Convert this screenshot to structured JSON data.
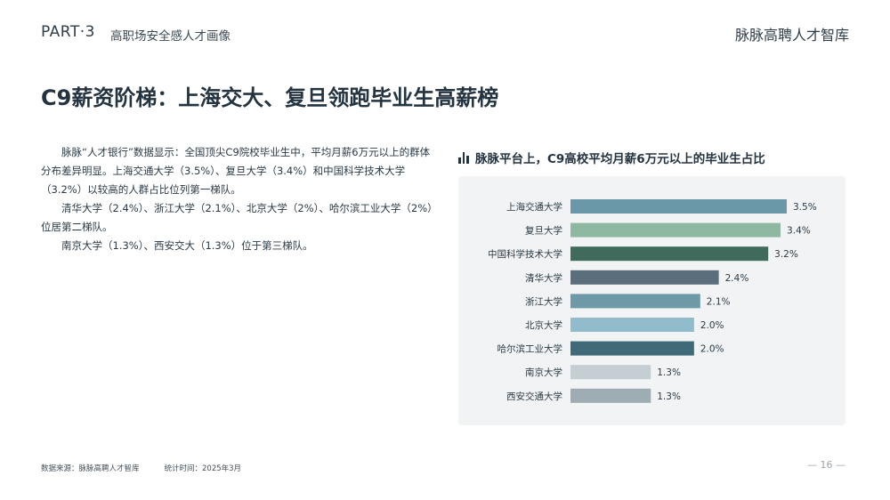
{
  "header": {
    "part": "PART·3",
    "section": "高职场安全感人才画像",
    "brand": "脉脉高聘人才智库"
  },
  "page_title": "C9薪资阶梯：上海交大、复旦领跑毕业生高薪榜",
  "body": {
    "p1": "脉脉“人才银行”数据显示：全国顶尖C9院校毕业生中，平均月薪6万元以上的群体分布差异明显。上海交通大学（3.5%）、复旦大学（3.4%）和中国科学技术大学（3.2%）以较高的人群占比位列第一梯队。",
    "p2": "清华大学（2.4%）、浙江大学（2.1%）、北京大学（2%）、哈尔滨工业大学（2%）位居第二梯队。",
    "p3": "南京大学（1.3%）、西安交大（1.3%）位于第三梯队。"
  },
  "chart_data": {
    "type": "bar",
    "orientation": "horizontal",
    "title": "脉脉平台上，C9高校平均月薪6万元以上的毕业生占比",
    "categories": [
      "上海交通大学",
      "复旦大学",
      "中国科学技术大学",
      "清华大学",
      "浙江大学",
      "北京大学",
      "哈尔滨工业大学",
      "南京大学",
      "西安交通大学"
    ],
    "values": [
      3.5,
      3.4,
      3.2,
      2.4,
      2.1,
      2.0,
      2.0,
      1.3,
      1.3
    ],
    "value_labels": [
      "3.5%",
      "3.4%",
      "3.2%",
      "2.4%",
      "2.1%",
      "2.0%",
      "2.0%",
      "1.3%",
      "1.3%"
    ],
    "colors": [
      "#6a98a8",
      "#8fb8a2",
      "#3f6a5c",
      "#5b6e7c",
      "#6e9aa8",
      "#90bccb",
      "#3f6a78",
      "#c5ced2",
      "#9eadb3"
    ],
    "xlim": [
      0,
      3.5
    ],
    "grid": false,
    "legend": false
  },
  "footer": {
    "source": "数据来源：脉脉高聘人才智库",
    "time": "统计时间：2025年3月",
    "page": "— 16 —"
  }
}
